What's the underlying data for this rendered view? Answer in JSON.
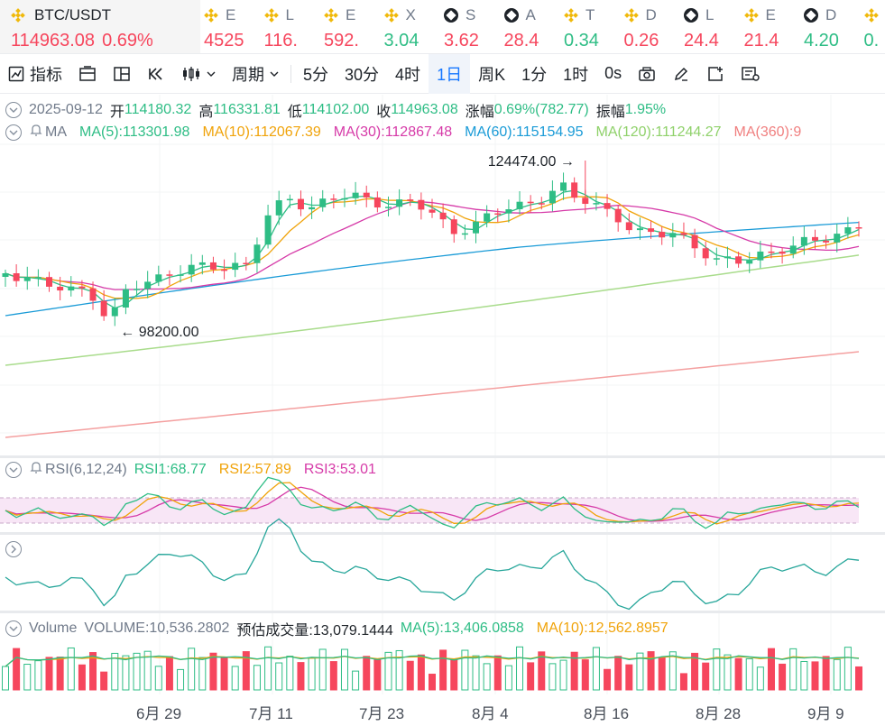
{
  "ticker": {
    "main": {
      "symbol": "BTC/USDT",
      "price": "114963.08",
      "change": "0.69%"
    },
    "items": [
      {
        "letter": "E",
        "icon": "binance-icon",
        "value": "4525",
        "dir": "dn"
      },
      {
        "letter": "L",
        "icon": "binance-icon",
        "value": "116.",
        "dir": "dn"
      },
      {
        "letter": "E",
        "icon": "binance-icon",
        "value": "592.",
        "dir": "dn"
      },
      {
        "letter": "X",
        "icon": "binance-icon",
        "value": "3.04",
        "dir": "up"
      },
      {
        "letter": "S",
        "icon": "coinmarket-icon",
        "value": "3.62",
        "dir": "dn"
      },
      {
        "letter": "A",
        "icon": "coinmarket-icon",
        "value": "28.4",
        "dir": "dn"
      },
      {
        "letter": "T",
        "icon": "binance-icon",
        "value": "0.34",
        "dir": "up"
      },
      {
        "letter": "D",
        "icon": "binance-icon",
        "value": "0.26",
        "dir": "dn"
      },
      {
        "letter": "L",
        "icon": "coinmarket-icon",
        "value": "24.4",
        "dir": "dn"
      },
      {
        "letter": "E",
        "icon": "binance-icon",
        "value": "21.4",
        "dir": "dn"
      },
      {
        "letter": "D",
        "icon": "coinmarket-icon",
        "value": "4.20",
        "dir": "up"
      },
      {
        "letter": "",
        "icon": "binance-icon",
        "value": "0.",
        "dir": "up"
      }
    ]
  },
  "toolbar": {
    "indicators": "指标",
    "period": "周期",
    "intervals": [
      "5分",
      "30分",
      "4时",
      "1日",
      "周K",
      "1分",
      "1时",
      "0s"
    ],
    "active_interval": "1日"
  },
  "ohlc": {
    "date": "2025-09-12",
    "open_label": "开",
    "open": "114180.32",
    "high_label": "高",
    "high": "116331.81",
    "low_label": "低",
    "low": "114102.00",
    "close_label": "收",
    "close": "114963.08",
    "change_label": "涨幅",
    "change": "0.69%(782.77)",
    "amp_label": "振幅",
    "amp": "1.95%"
  },
  "ma": {
    "label": "MA",
    "items": [
      {
        "text": "MA(5):113301.98",
        "color": "#2ebd85"
      },
      {
        "text": "MA(10):112067.39",
        "color": "#f0a30a"
      },
      {
        "text": "MA(30):112867.48",
        "color": "#d63aa8"
      },
      {
        "text": "MA(60):115154.95",
        "color": "#1a9bd7"
      },
      {
        "text": "MA(120):111244.27",
        "color": "#8fd16a"
      },
      {
        "text": "MA(360):9",
        "color": "#f07f7f"
      }
    ]
  },
  "rsi": {
    "label": "RSI(6,12,24)",
    "items": [
      {
        "text": "RSI1:68.77",
        "color": "#2ebd85"
      },
      {
        "text": "RSI2:57.89",
        "color": "#f0a30a"
      },
      {
        "text": "RSI3:53.01",
        "color": "#d63aa8"
      }
    ]
  },
  "volume": {
    "label": "Volume",
    "value": "VOLUME:10,536.2802",
    "estimate": "预估成交量:13,079.1444",
    "items": [
      {
        "text": "MA(5):13,406.0858",
        "color": "#2ebd85"
      },
      {
        "text": "MA(10):12,562.8957",
        "color": "#f0a30a"
      }
    ]
  },
  "x_axis": [
    "6月 29",
    "7月 11",
    "7月 23",
    "8月 4",
    "8月 16",
    "8月 28",
    "9月 9"
  ],
  "chart_data": {
    "type": "candlestick",
    "high_marker": "124474.00",
    "low_marker": "98200.00",
    "colors": {
      "up": "#2ebd85",
      "down": "#f6465d"
    }
  }
}
